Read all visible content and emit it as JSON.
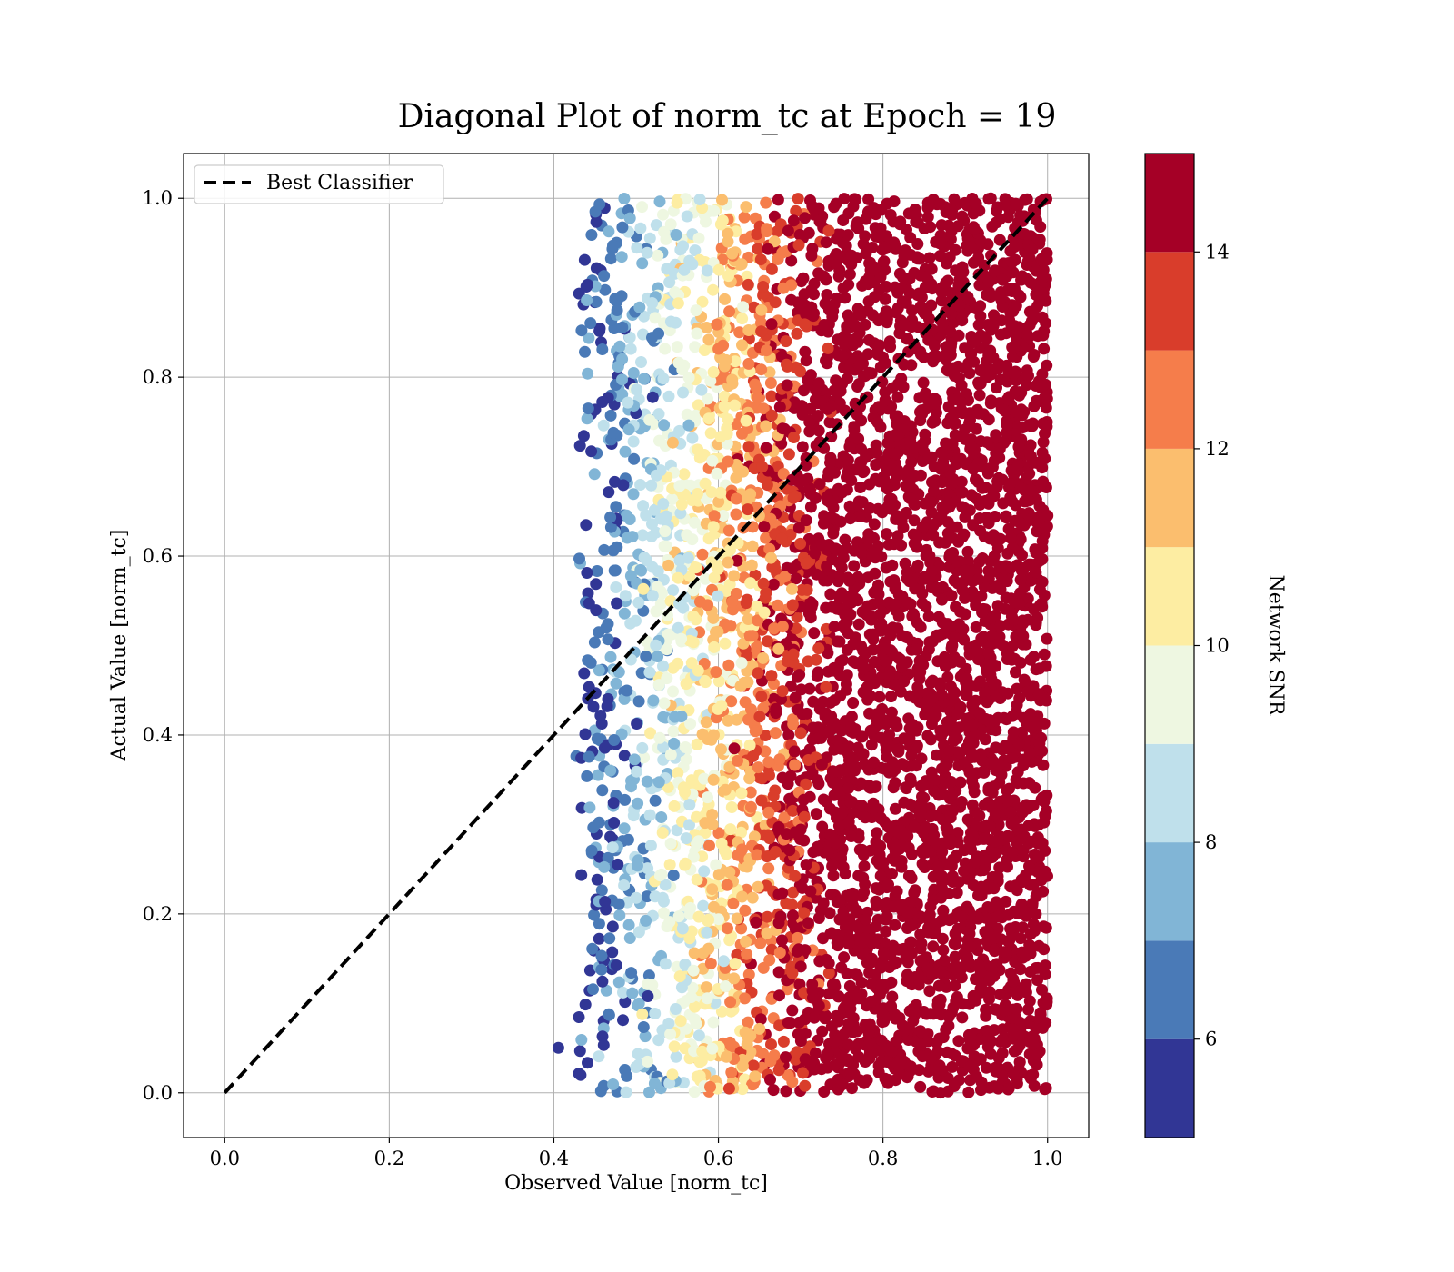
{
  "chart_data": {
    "type": "scatter",
    "title": "Diagonal Plot of norm_tc at Epoch = 19",
    "xlabel": "Observed Value [norm_tc]",
    "ylabel": "Actual Value [norm_tc]",
    "xlim": [
      -0.05,
      1.05
    ],
    "ylim": [
      -0.05,
      1.05
    ],
    "xticks": [
      "0.0",
      "0.2",
      "0.4",
      "0.6",
      "0.8",
      "1.0"
    ],
    "yticks": [
      "0.0",
      "0.2",
      "0.4",
      "0.6",
      "0.8",
      "1.0"
    ],
    "grid": true,
    "legend": {
      "placement": "top-left",
      "entries": [
        "Best Classifier"
      ]
    },
    "reference_line": {
      "name": "Best Classifier",
      "x": [
        0,
        1
      ],
      "y": [
        0,
        1
      ],
      "style": "dashed",
      "color": "#000000"
    },
    "scatter_extent": {
      "x_range": [
        0.39,
        1.0
      ],
      "y_range": [
        0.0,
        1.0
      ]
    },
    "colorbar": {
      "label": "Network SNR",
      "range": [
        5,
        15
      ],
      "ticks": [
        "6",
        "8",
        "10",
        "12",
        "14"
      ],
      "tick_values": [
        6,
        8,
        10,
        12,
        14
      ],
      "levels": [
        {
          "from": 5,
          "to": 6,
          "color": "#313695"
        },
        {
          "from": 6,
          "to": 7,
          "color": "#4a7ab7"
        },
        {
          "from": 7,
          "to": 8,
          "color": "#81b5d6"
        },
        {
          "from": 8,
          "to": 9,
          "color": "#bfe0eb"
        },
        {
          "from": 9,
          "to": 10,
          "color": "#eef7e1"
        },
        {
          "from": 10,
          "to": 11,
          "color": "#fdeda2"
        },
        {
          "from": 11,
          "to": 12,
          "color": "#fbbe6e"
        },
        {
          "from": 12,
          "to": 13,
          "color": "#f57d4b"
        },
        {
          "from": 13,
          "to": 14,
          "color": "#d93d2b"
        },
        {
          "from": 14,
          "to": 15,
          "color": "#a50026"
        }
      ]
    }
  }
}
